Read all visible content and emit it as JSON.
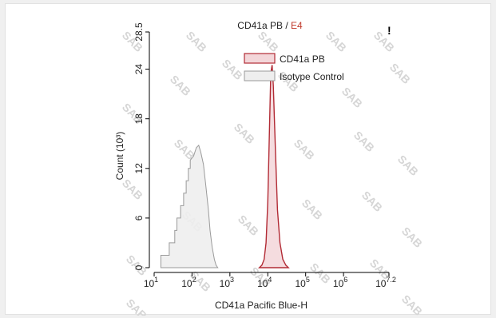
{
  "watermark_text": "SAB",
  "corner_mark": "!",
  "colors": {
    "sample": "#b22b35",
    "sample_fill": "#f3d6d9",
    "isotype": "#9a9a9a",
    "isotype_fill": "#eeeeee",
    "subtitle": "#c0392b"
  },
  "chart_data": {
    "type": "area",
    "title": "CD41a PB",
    "title_separator": " / ",
    "subtitle": "E4",
    "xlabel": "CD41a Pacific Blue-H",
    "ylabel": "Count (10³)",
    "x_scale": "log10",
    "xlim": [
      10,
      15848932
    ],
    "ylim": [
      0,
      28.5
    ],
    "x_ticks": [
      {
        "base": "10",
        "exp": "1",
        "value": 10
      },
      {
        "base": "10",
        "exp": "2",
        "value": 100
      },
      {
        "base": "10",
        "exp": "3",
        "value": 1000
      },
      {
        "base": "10",
        "exp": "4",
        "value": 10000
      },
      {
        "base": "10",
        "exp": "5",
        "value": 100000
      },
      {
        "base": "10",
        "exp": "6",
        "value": 1000000
      },
      {
        "base": "10",
        "exp": "7.2",
        "value": 15848932
      }
    ],
    "y_ticks": [
      "0",
      "6",
      "12",
      "18",
      "24",
      "28.5"
    ],
    "y_tick_values": [
      0,
      6,
      12,
      18,
      24,
      28.5
    ],
    "legend": [
      "CD41a PB",
      "Isotype Control"
    ],
    "legend_position": "top-right",
    "grid": false,
    "series": [
      {
        "name": "CD41a PB",
        "points": [
          [
            6000,
            0
          ],
          [
            7000,
            0.3
          ],
          [
            8000,
            1.0
          ],
          [
            9000,
            3.0
          ],
          [
            10000,
            8.0
          ],
          [
            11000,
            16.0
          ],
          [
            12000,
            23.5
          ],
          [
            13000,
            24.5
          ],
          [
            14000,
            22.0
          ],
          [
            16000,
            14.0
          ],
          [
            18000,
            7.0
          ],
          [
            21000,
            3.0
          ],
          [
            25000,
            1.0
          ],
          [
            30000,
            0.3
          ],
          [
            35000,
            0
          ]
        ]
      },
      {
        "name": "Isotype Control",
        "points": [
          [
            15,
            0
          ],
          [
            15,
            1.5
          ],
          [
            25,
            1.5
          ],
          [
            25,
            3
          ],
          [
            35,
            3
          ],
          [
            35,
            4.5
          ],
          [
            40,
            4.5
          ],
          [
            40,
            6
          ],
          [
            50,
            6
          ],
          [
            50,
            7.5
          ],
          [
            60,
            7.5
          ],
          [
            60,
            9
          ],
          [
            70,
            9
          ],
          [
            70,
            10.5
          ],
          [
            80,
            10.5
          ],
          [
            80,
            12
          ],
          [
            90,
            12
          ],
          [
            90,
            13
          ],
          [
            110,
            13.5
          ],
          [
            130,
            14.5
          ],
          [
            150,
            14.8
          ],
          [
            170,
            14.0
          ],
          [
            200,
            12.5
          ],
          [
            230,
            10.0
          ],
          [
            270,
            7.0
          ],
          [
            300,
            4.5
          ],
          [
            340,
            2.5
          ],
          [
            390,
            1.0
          ],
          [
            430,
            0.3
          ],
          [
            480,
            0
          ]
        ]
      }
    ]
  }
}
